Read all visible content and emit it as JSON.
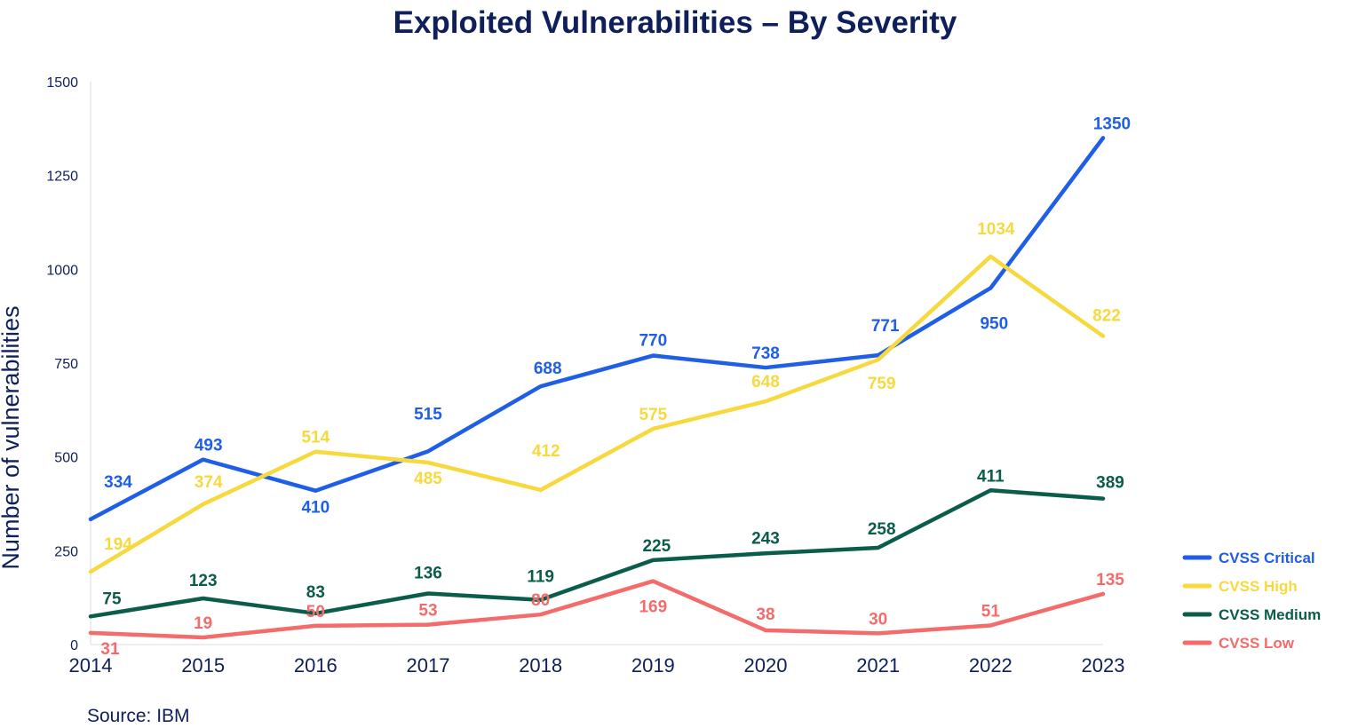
{
  "chart_data": {
    "type": "line",
    "title": "Exploited Vulnerabilities – By Severity",
    "ylabel": "Number of vulnerabilities",
    "xlabel": "",
    "categories": [
      "2014",
      "2015",
      "2016",
      "2017",
      "2018",
      "2019",
      "2020",
      "2021",
      "2022",
      "2023"
    ],
    "ylim": [
      0,
      1500
    ],
    "yticks": [
      0,
      250,
      500,
      750,
      1000,
      1250,
      1500
    ],
    "grid": false,
    "legend_position": "right",
    "series": [
      {
        "name": "CVSS Critical",
        "color": "#1f5ee6",
        "values": [
          334,
          493,
          410,
          515,
          688,
          770,
          738,
          771,
          950,
          1350
        ],
        "labels": [
          "334",
          "493",
          "410",
          "515",
          "688",
          "770",
          "738",
          "771",
          "950",
          "1350"
        ]
      },
      {
        "name": "CVSS High",
        "color": "#f7d93e",
        "values": [
          194,
          374,
          514,
          485,
          412,
          575,
          648,
          759,
          1034,
          822
        ],
        "labels": [
          "194",
          "374",
          "514",
          "485",
          "412",
          "575",
          "648",
          "759",
          "1034",
          "822"
        ]
      },
      {
        "name": "CVSS Medium",
        "color": "#0b5c4b",
        "values": [
          75,
          123,
          83,
          136,
          119,
          225,
          243,
          258,
          411,
          389
        ],
        "labels": [
          "75",
          "123",
          "83",
          "136",
          "119",
          "225",
          "243",
          "258",
          "411",
          "389"
        ]
      },
      {
        "name": "CVSS Low",
        "color": "#f46b6b",
        "values": [
          31,
          19,
          50,
          53,
          80,
          169,
          38,
          30,
          51,
          135
        ],
        "labels": [
          "31",
          "19",
          "50",
          "53",
          "80",
          "169",
          "38",
          "30",
          "51",
          "135"
        ]
      }
    ]
  },
  "source": "Source: IBM"
}
